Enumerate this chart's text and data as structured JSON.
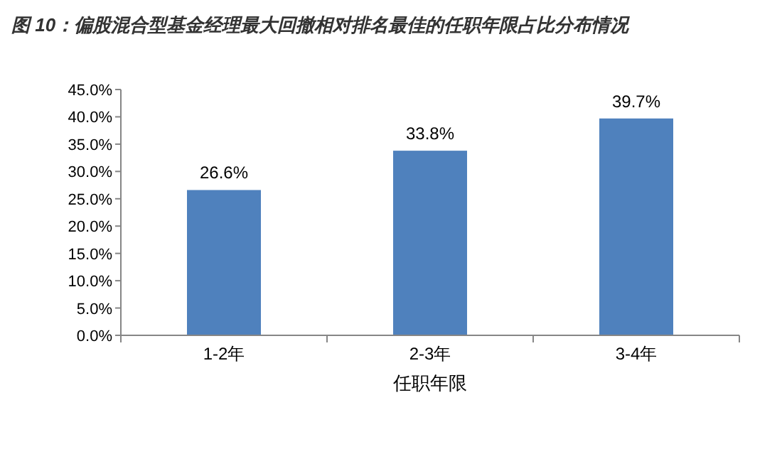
{
  "chart_data": {
    "type": "bar",
    "title": "图 10：偏股混合型基金经理最大回撤相对排名最佳的任职年限占比分布情况",
    "xlabel": "任职年限",
    "categories": [
      "1-2年",
      "2-3年",
      "3-4年"
    ],
    "values": [
      26.6,
      33.8,
      39.7
    ],
    "value_labels": [
      "26.6%",
      "33.8%",
      "39.7%"
    ],
    "color": "#4f81bd",
    "ylim": [
      0,
      45
    ],
    "yticks": [
      {
        "value": 0,
        "label": "0.0%"
      },
      {
        "value": 5,
        "label": "5.0%"
      },
      {
        "value": 10,
        "label": "10.0%"
      },
      {
        "value": 15,
        "label": "15.0%"
      },
      {
        "value": 20,
        "label": "20.0%"
      },
      {
        "value": 25,
        "label": "25.0%"
      },
      {
        "value": 30,
        "label": "30.0%"
      },
      {
        "value": 35,
        "label": "35.0%"
      },
      {
        "value": 40,
        "label": "40.0%"
      },
      {
        "value": 45,
        "label": "45.0%"
      }
    ],
    "grid": false
  }
}
